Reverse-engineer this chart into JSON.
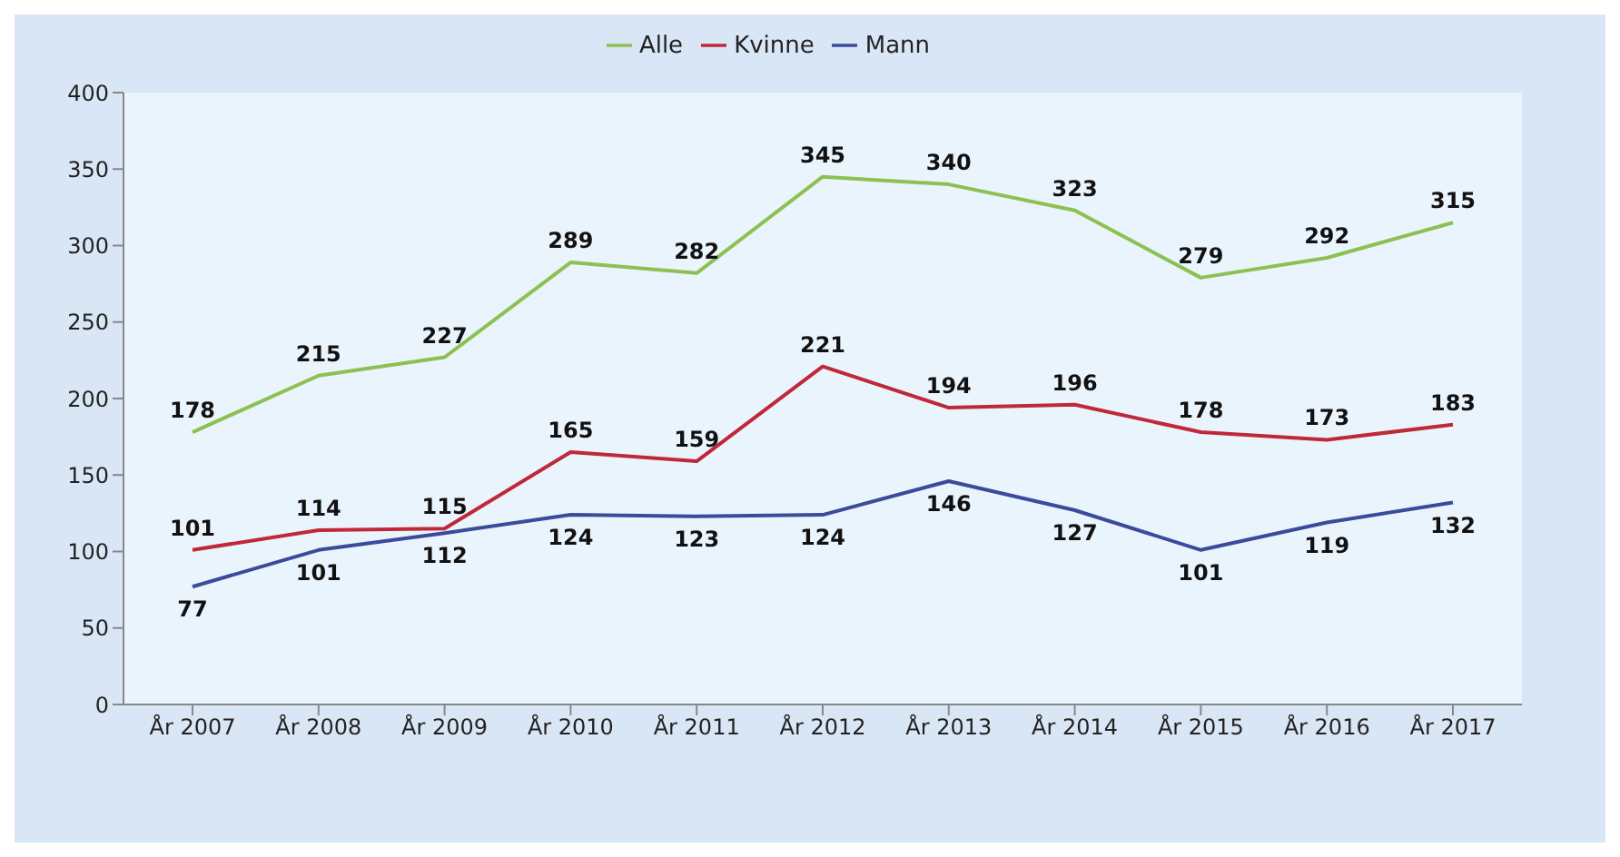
{
  "chart_data": {
    "type": "line",
    "categories": [
      "År 2007",
      "År 2008",
      "År 2009",
      "År 2010",
      "År 2011",
      "År 2012",
      "År 2013",
      "År 2014",
      "År 2015",
      "År 2016",
      "År 2017"
    ],
    "series": [
      {
        "name": "Mann",
        "color": "#3b4a9c",
        "values": [
          77,
          101,
          112,
          124,
          123,
          124,
          146,
          127,
          101,
          119,
          132
        ]
      },
      {
        "name": "Kvinne",
        "color": "#c0283a",
        "values": [
          101,
          114,
          115,
          165,
          159,
          221,
          194,
          196,
          178,
          173,
          183
        ]
      },
      {
        "name": "Alle",
        "color": "#8cc152",
        "values": [
          178,
          215,
          227,
          289,
          282,
          345,
          340,
          323,
          279,
          292,
          315
        ]
      }
    ],
    "ylim": [
      0,
      400
    ],
    "yticks": [
      0,
      50,
      100,
      150,
      200,
      250,
      300,
      350,
      400
    ],
    "legend": "top",
    "data_labels": true
  }
}
